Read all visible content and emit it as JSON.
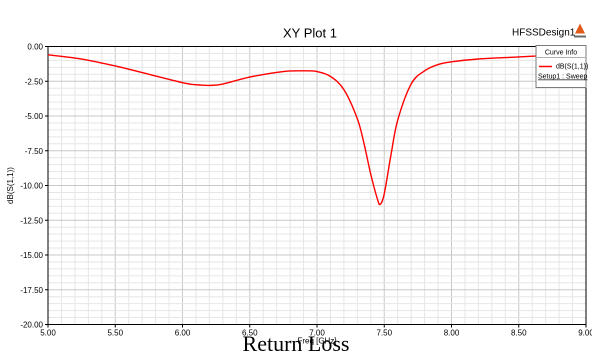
{
  "chart_data": {
    "type": "line",
    "title": "XY Plot 1",
    "design_label": "HFSSDesign1",
    "xlabel": "Freq [GHz]",
    "ylabel": "dB(S(1,1))",
    "xlim": [
      5.0,
      9.0
    ],
    "ylim": [
      -20.0,
      0.0
    ],
    "x_ticks": [
      "5.00",
      "5.50",
      "6.00",
      "6.50",
      "7.00",
      "7.50",
      "8.00",
      "8.50",
      "9.00"
    ],
    "y_ticks": [
      "0.00",
      "-2.50",
      "-5.00",
      "-7.50",
      "-10.00",
      "-12.50",
      "-15.00",
      "-17.50",
      "-20.00"
    ],
    "grid": true,
    "legend": {
      "title": "Curve Info",
      "placement": "top-right",
      "entries": [
        {
          "name": "dB(S(1,1))",
          "sub": "Setup1 : Sweep",
          "color": "#ff0000"
        }
      ]
    },
    "series": [
      {
        "name": "dB(S(1,1))",
        "color": "#ff0000",
        "x": [
          5.0,
          5.25,
          5.5,
          5.75,
          6.0,
          6.1,
          6.2,
          6.3,
          6.5,
          6.75,
          6.9,
          7.0,
          7.1,
          7.2,
          7.3,
          7.35,
          7.4,
          7.45,
          7.47,
          7.5,
          7.55,
          7.6,
          7.7,
          7.8,
          7.9,
          8.0,
          8.2,
          8.5,
          8.8,
          9.0
        ],
        "y": [
          -0.6,
          -0.9,
          -1.4,
          -2.0,
          -2.6,
          -2.75,
          -2.8,
          -2.7,
          -2.2,
          -1.8,
          -1.75,
          -1.8,
          -2.15,
          -3.1,
          -5.2,
          -7.0,
          -9.2,
          -11.0,
          -11.35,
          -10.6,
          -7.8,
          -5.3,
          -2.7,
          -1.75,
          -1.3,
          -1.1,
          -0.9,
          -0.75,
          -0.6,
          -0.55
        ]
      }
    ]
  },
  "caption": "Return Loss",
  "colors": {
    "curve": "#ff0000",
    "grid": "#d8d8d8",
    "legend_bg": "#ffffff"
  },
  "icons": {
    "logo": "hfss-logo-icon"
  }
}
